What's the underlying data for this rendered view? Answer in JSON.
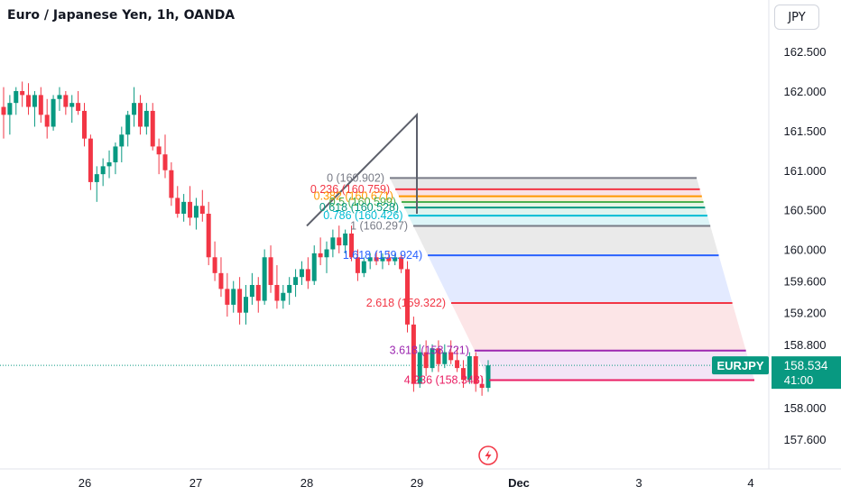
{
  "header": {
    "title": "Euro / Japanese Yen, 1h, OANDA",
    "currency": "JPY"
  },
  "price_label": {
    "symbol": "EURJPY",
    "price": "158.534",
    "countdown": "41:00",
    "color": "#089981"
  },
  "colors": {
    "up": "#089981",
    "down": "#f23645"
  },
  "chart_data": {
    "type": "candlestick",
    "title": "Euro / Japanese Yen, 1h, OANDA",
    "y_axis_ticks": [
      "162.500",
      "162.000",
      "161.500",
      "161.000",
      "160.500",
      "160.000",
      "159.600",
      "159.200",
      "158.800",
      "158.000",
      "157.600"
    ],
    "x_axis_ticks": [
      "26",
      "27",
      "28",
      "29",
      "Dec",
      "3",
      "4"
    ],
    "ylim": [
      157.45,
      162.95
    ],
    "last_price": 158.534,
    "fib_extension": {
      "swing_prices": [
        160.297,
        161.7,
        160.45
      ],
      "levels": [
        {
          "label": "0 (160.902)",
          "ratio": "0",
          "price": 160.902,
          "color": "#787b86"
        },
        {
          "label": "0.236 (160.759)",
          "ratio": "0.236",
          "price": 160.759,
          "color": "#f23645"
        },
        {
          "label": "0.382 (160.671)",
          "ratio": "0.382",
          "price": 160.671,
          "color": "#ff9800"
        },
        {
          "label": "0.5 (160.599)",
          "ratio": "0.5",
          "price": 160.599,
          "color": "#4caf50"
        },
        {
          "label": "0.618 (160.528)",
          "ratio": "0.618",
          "price": 160.528,
          "color": "#089981"
        },
        {
          "label": "0.786 (160.426)",
          "ratio": "0.786",
          "price": 160.426,
          "color": "#00bcd4"
        },
        {
          "label": "1 (160.297)",
          "ratio": "1",
          "price": 160.297,
          "color": "#787b86"
        },
        {
          "label": "1.618 (159.924)",
          "ratio": "1.618",
          "price": 159.924,
          "color": "#2962ff"
        },
        {
          "label": "2.618 (159.322)",
          "ratio": "2.618",
          "price": 159.322,
          "color": "#f23645"
        },
        {
          "label": "3.618 (158.721)",
          "ratio": "3.618",
          "price": 158.721,
          "color": "#9c27b0"
        },
        {
          "label": "4.236 (158.348)",
          "ratio": "4.236",
          "price": 158.348,
          "color": "#e91e63"
        }
      ]
    },
    "candles": [
      {
        "o": 161.8,
        "h": 162.05,
        "l": 161.4,
        "c": 161.7
      },
      {
        "o": 161.7,
        "h": 161.95,
        "l": 161.45,
        "c": 161.85
      },
      {
        "o": 161.85,
        "h": 162.05,
        "l": 161.7,
        "c": 162.0
      },
      {
        "o": 162.0,
        "h": 162.12,
        "l": 161.8,
        "c": 161.95
      },
      {
        "o": 161.95,
        "h": 162.1,
        "l": 161.7,
        "c": 161.8
      },
      {
        "o": 161.8,
        "h": 162.0,
        "l": 161.55,
        "c": 161.95
      },
      {
        "o": 161.95,
        "h": 162.05,
        "l": 161.6,
        "c": 161.7
      },
      {
        "o": 161.7,
        "h": 161.9,
        "l": 161.4,
        "c": 161.55
      },
      {
        "o": 161.55,
        "h": 161.95,
        "l": 161.5,
        "c": 161.9
      },
      {
        "o": 161.9,
        "h": 162.05,
        "l": 161.75,
        "c": 161.95
      },
      {
        "o": 161.95,
        "h": 162.0,
        "l": 161.7,
        "c": 161.8
      },
      {
        "o": 161.8,
        "h": 161.95,
        "l": 161.6,
        "c": 161.85
      },
      {
        "o": 161.85,
        "h": 162.0,
        "l": 161.7,
        "c": 161.75
      },
      {
        "o": 161.75,
        "h": 161.85,
        "l": 161.3,
        "c": 161.4
      },
      {
        "o": 161.4,
        "h": 161.45,
        "l": 160.75,
        "c": 160.85
      },
      {
        "o": 160.85,
        "h": 161.05,
        "l": 160.6,
        "c": 160.95
      },
      {
        "o": 160.95,
        "h": 161.15,
        "l": 160.8,
        "c": 161.05
      },
      {
        "o": 161.05,
        "h": 161.25,
        "l": 160.9,
        "c": 161.1
      },
      {
        "o": 161.1,
        "h": 161.35,
        "l": 160.95,
        "c": 161.3
      },
      {
        "o": 161.3,
        "h": 161.55,
        "l": 161.1,
        "c": 161.45
      },
      {
        "o": 161.45,
        "h": 161.75,
        "l": 161.3,
        "c": 161.7
      },
      {
        "o": 161.7,
        "h": 162.05,
        "l": 161.55,
        "c": 161.85
      },
      {
        "o": 161.85,
        "h": 161.95,
        "l": 161.45,
        "c": 161.55
      },
      {
        "o": 161.55,
        "h": 161.85,
        "l": 161.45,
        "c": 161.75
      },
      {
        "o": 161.75,
        "h": 161.85,
        "l": 161.25,
        "c": 161.3
      },
      {
        "o": 161.3,
        "h": 161.4,
        "l": 160.95,
        "c": 161.2
      },
      {
        "o": 161.2,
        "h": 161.45,
        "l": 160.9,
        "c": 161.0
      },
      {
        "o": 161.0,
        "h": 161.1,
        "l": 160.55,
        "c": 160.65
      },
      {
        "o": 160.65,
        "h": 160.8,
        "l": 160.4,
        "c": 160.45
      },
      {
        "o": 160.45,
        "h": 160.7,
        "l": 160.35,
        "c": 160.6
      },
      {
        "o": 160.6,
        "h": 160.8,
        "l": 160.3,
        "c": 160.4
      },
      {
        "o": 160.4,
        "h": 160.65,
        "l": 160.25,
        "c": 160.55
      },
      {
        "o": 160.55,
        "h": 160.75,
        "l": 160.35,
        "c": 160.45
      },
      {
        "o": 160.45,
        "h": 160.6,
        "l": 159.8,
        "c": 159.9
      },
      {
        "o": 159.9,
        "h": 160.1,
        "l": 159.6,
        "c": 159.7
      },
      {
        "o": 159.7,
        "h": 159.9,
        "l": 159.4,
        "c": 159.5
      },
      {
        "o": 159.5,
        "h": 159.7,
        "l": 159.15,
        "c": 159.3
      },
      {
        "o": 159.3,
        "h": 159.6,
        "l": 159.2,
        "c": 159.5
      },
      {
        "o": 159.5,
        "h": 159.65,
        "l": 159.05,
        "c": 159.2
      },
      {
        "o": 159.2,
        "h": 159.55,
        "l": 159.05,
        "c": 159.4
      },
      {
        "o": 159.4,
        "h": 159.7,
        "l": 159.3,
        "c": 159.55
      },
      {
        "o": 159.55,
        "h": 159.65,
        "l": 159.2,
        "c": 159.35
      },
      {
        "o": 159.35,
        "h": 160.0,
        "l": 159.3,
        "c": 159.9
      },
      {
        "o": 159.9,
        "h": 160.05,
        "l": 159.45,
        "c": 159.55
      },
      {
        "o": 159.55,
        "h": 159.8,
        "l": 159.25,
        "c": 159.35
      },
      {
        "o": 159.35,
        "h": 159.55,
        "l": 159.25,
        "c": 159.45
      },
      {
        "o": 159.45,
        "h": 159.65,
        "l": 159.3,
        "c": 159.55
      },
      {
        "o": 159.55,
        "h": 159.75,
        "l": 159.4,
        "c": 159.65
      },
      {
        "o": 159.65,
        "h": 159.85,
        "l": 159.55,
        "c": 159.75
      },
      {
        "o": 159.75,
        "h": 159.9,
        "l": 159.5,
        "c": 159.6
      },
      {
        "o": 159.6,
        "h": 160.05,
        "l": 159.55,
        "c": 159.95
      },
      {
        "o": 159.95,
        "h": 160.15,
        "l": 159.8,
        "c": 159.9
      },
      {
        "o": 159.9,
        "h": 160.1,
        "l": 159.7,
        "c": 160.0
      },
      {
        "o": 160.0,
        "h": 160.25,
        "l": 159.9,
        "c": 160.15
      },
      {
        "o": 160.15,
        "h": 160.3,
        "l": 159.95,
        "c": 160.05
      },
      {
        "o": 160.05,
        "h": 160.25,
        "l": 159.95,
        "c": 160.2
      },
      {
        "o": 160.2,
        "h": 160.3,
        "l": 159.85,
        "c": 159.9
      },
      {
        "o": 159.9,
        "h": 160.0,
        "l": 159.6,
        "c": 159.7
      },
      {
        "o": 159.7,
        "h": 159.9,
        "l": 159.65,
        "c": 159.85
      },
      {
        "o": 159.85,
        "h": 159.95,
        "l": 159.75,
        "c": 159.9
      },
      {
        "o": 159.9,
        "h": 159.98,
        "l": 159.8,
        "c": 159.85
      },
      {
        "o": 159.85,
        "h": 159.95,
        "l": 159.75,
        "c": 159.9
      },
      {
        "o": 159.9,
        "h": 159.97,
        "l": 159.8,
        "c": 159.85
      },
      {
        "o": 159.85,
        "h": 159.95,
        "l": 159.8,
        "c": 159.9
      },
      {
        "o": 159.9,
        "h": 159.95,
        "l": 159.7,
        "c": 159.75
      },
      {
        "o": 159.75,
        "h": 159.85,
        "l": 158.95,
        "c": 159.05
      },
      {
        "o": 159.05,
        "h": 159.15,
        "l": 158.2,
        "c": 158.3
      },
      {
        "o": 158.3,
        "h": 158.8,
        "l": 158.25,
        "c": 158.7
      },
      {
        "o": 158.7,
        "h": 158.85,
        "l": 158.4,
        "c": 158.5
      },
      {
        "o": 158.5,
        "h": 158.8,
        "l": 158.45,
        "c": 158.75
      },
      {
        "o": 158.75,
        "h": 158.85,
        "l": 158.45,
        "c": 158.55
      },
      {
        "o": 158.55,
        "h": 158.8,
        "l": 158.5,
        "c": 158.7
      },
      {
        "o": 158.7,
        "h": 158.85,
        "l": 158.55,
        "c": 158.6
      },
      {
        "o": 158.6,
        "h": 158.75,
        "l": 158.45,
        "c": 158.5
      },
      {
        "o": 158.5,
        "h": 158.6,
        "l": 158.25,
        "c": 158.35
      },
      {
        "o": 158.35,
        "h": 158.7,
        "l": 158.3,
        "c": 158.65
      },
      {
        "o": 158.65,
        "h": 158.7,
        "l": 158.2,
        "c": 158.3
      },
      {
        "o": 158.3,
        "h": 158.4,
        "l": 158.15,
        "c": 158.25
      },
      {
        "o": 158.25,
        "h": 158.6,
        "l": 158.2,
        "c": 158.534
      }
    ]
  }
}
